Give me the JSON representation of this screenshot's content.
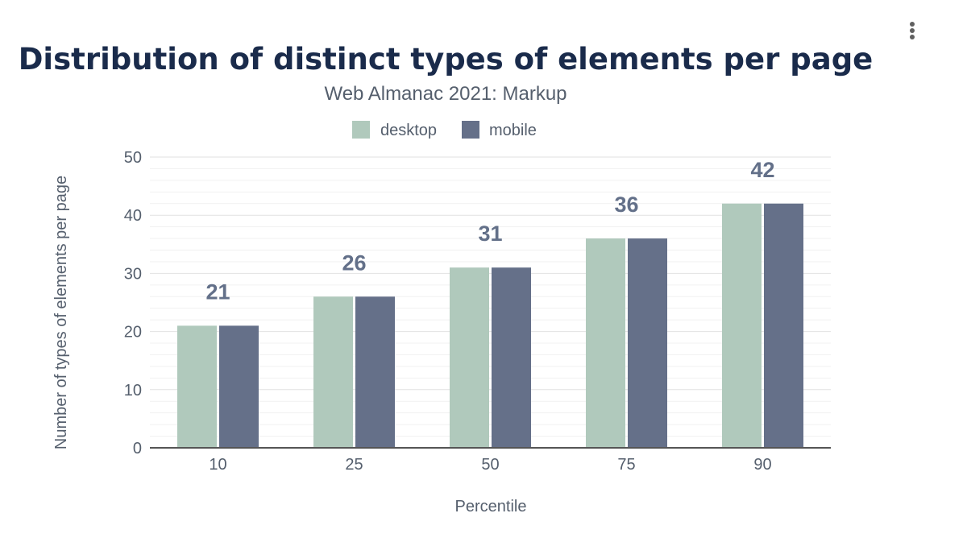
{
  "chart_data": {
    "type": "bar",
    "title": "Distribution of distinct types of elements per page",
    "subtitle": "Web Almanac 2021: Markup",
    "xlabel": "Percentile",
    "ylabel": "Number of types of elements per page",
    "categories": [
      "10",
      "25",
      "50",
      "75",
      "90"
    ],
    "series": [
      {
        "name": "desktop",
        "values": [
          21,
          26,
          31,
          36,
          42
        ],
        "color": "#b0c9bc"
      },
      {
        "name": "mobile",
        "values": [
          21,
          26,
          31,
          36,
          42
        ],
        "color": "#657089"
      }
    ],
    "data_labels": [
      "21",
      "26",
      "31",
      "36",
      "42"
    ],
    "ylim": [
      0,
      50
    ],
    "yticks": [
      0,
      10,
      20,
      30,
      40,
      50
    ],
    "grid": true,
    "legend_position": "top-center"
  },
  "menu": {
    "icon": "more-vert-icon"
  }
}
